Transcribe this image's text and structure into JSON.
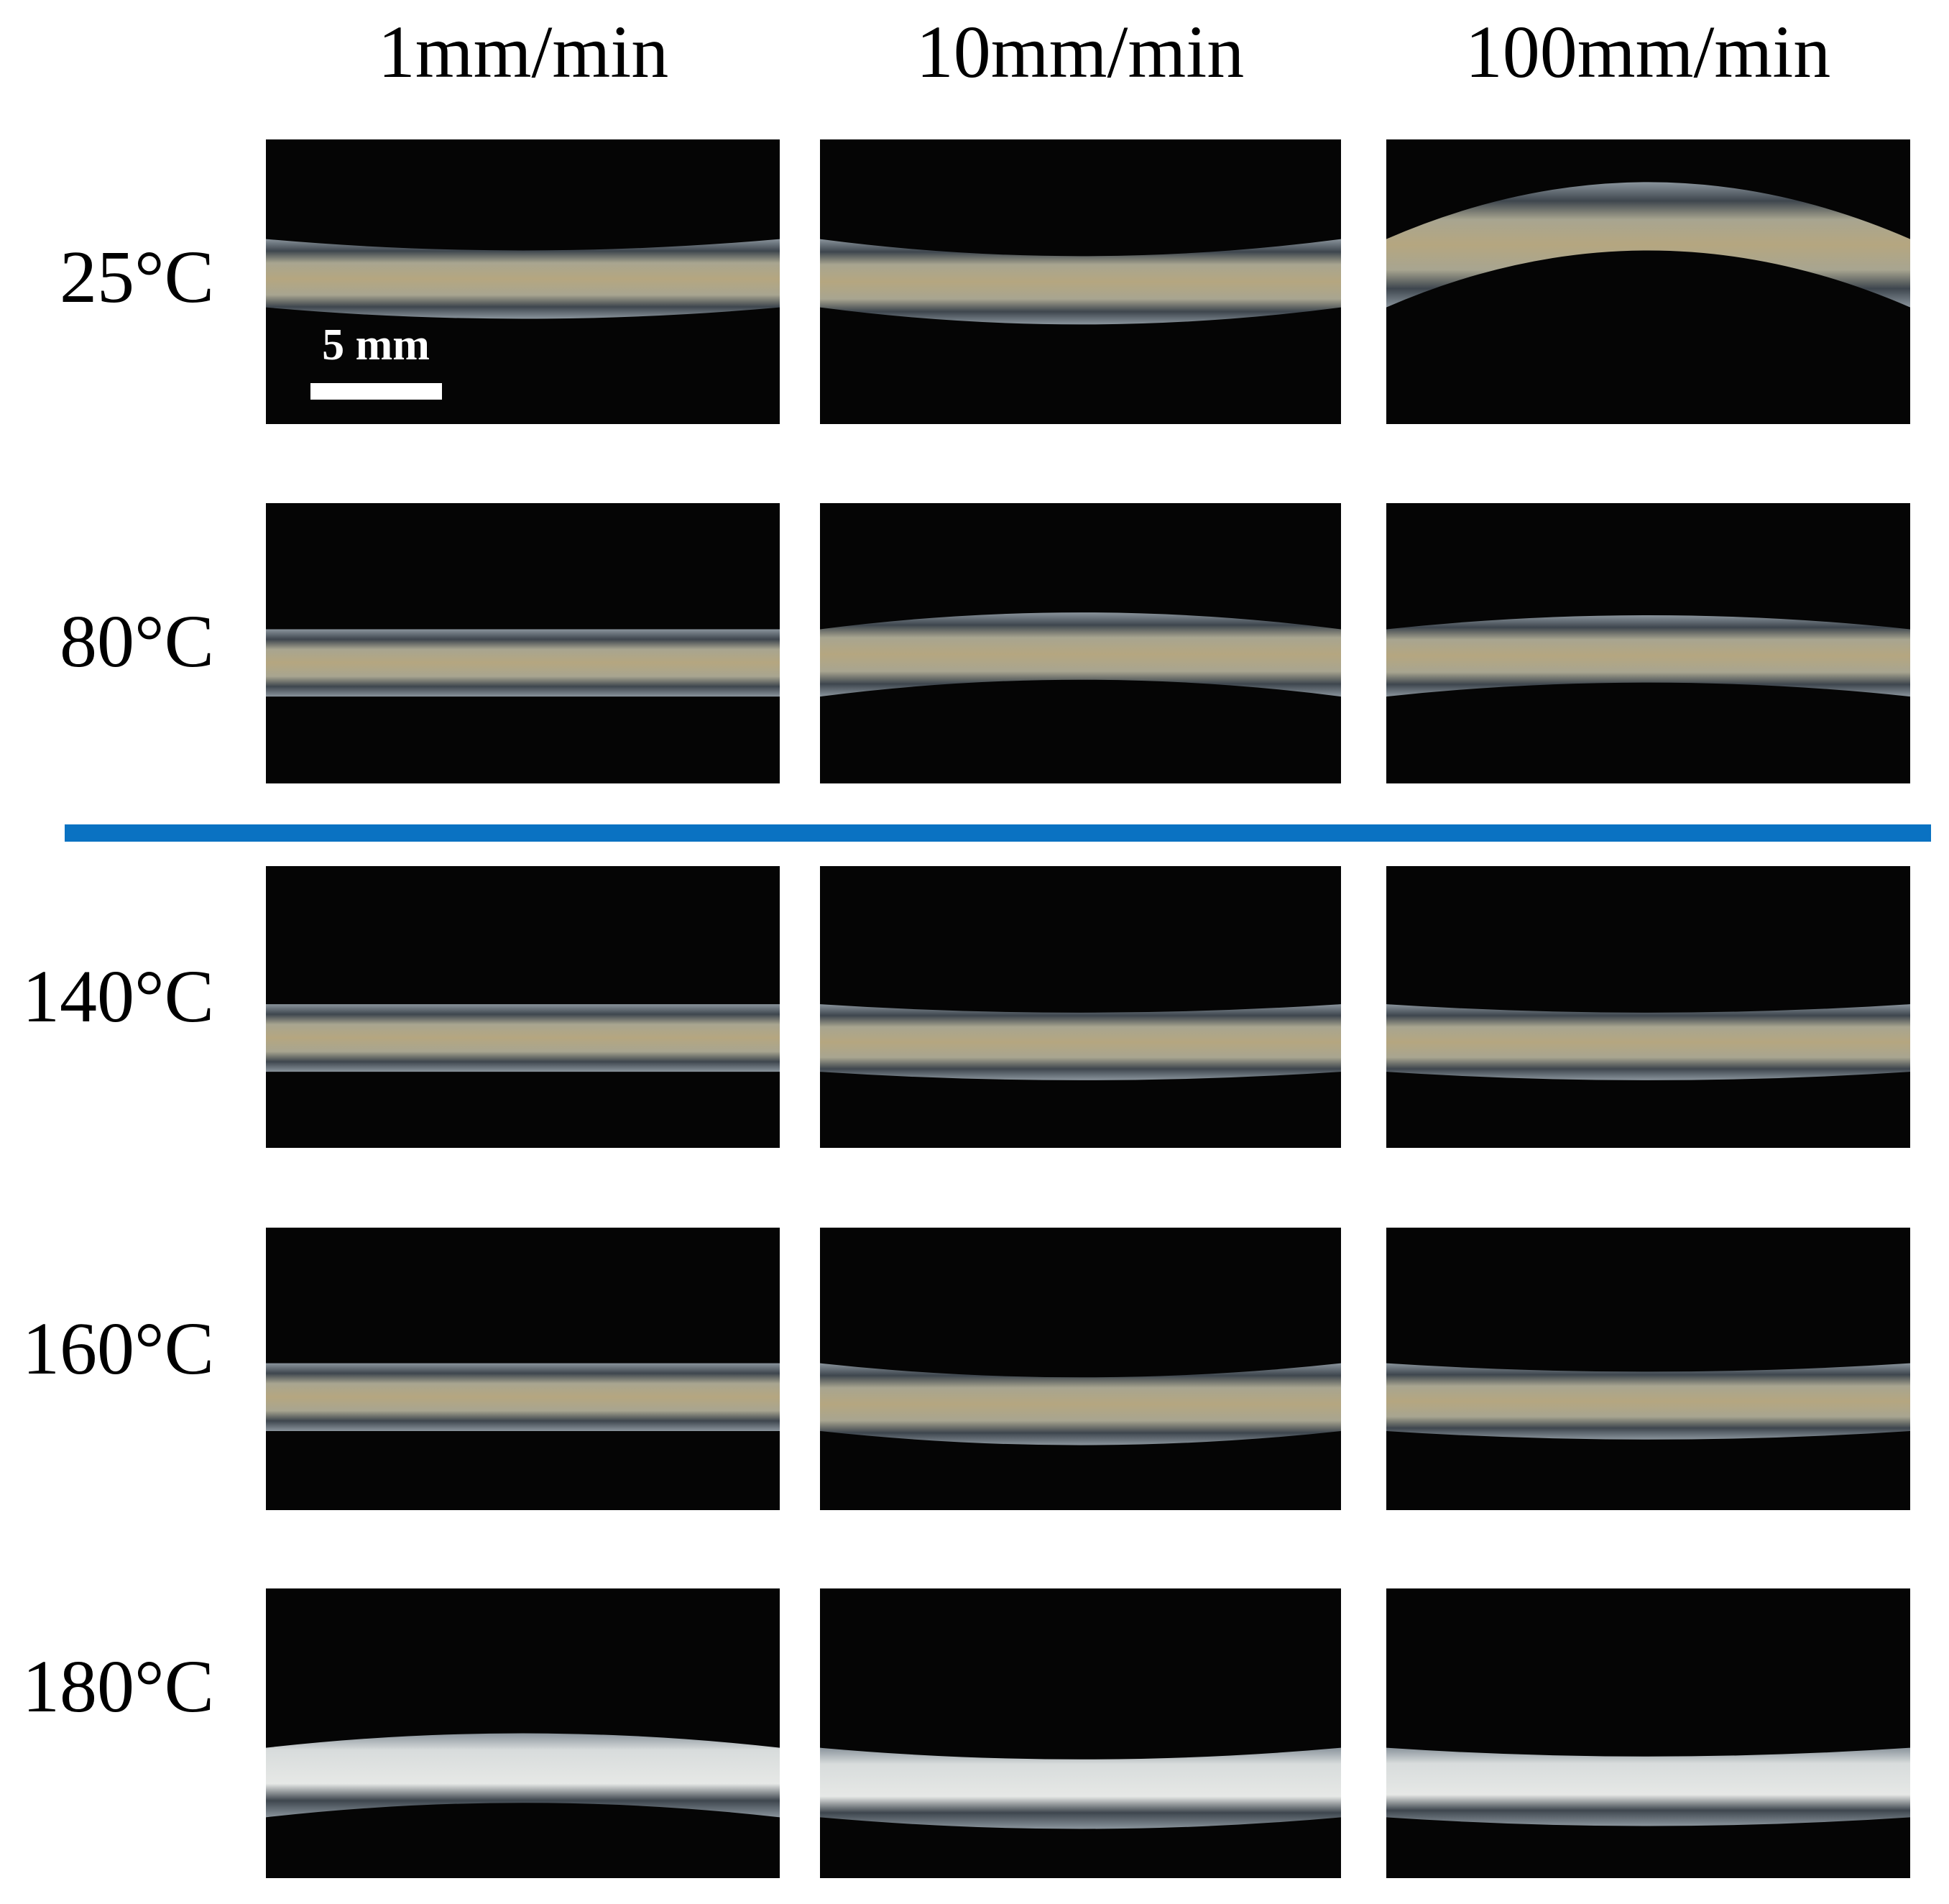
{
  "column_headers": [
    "1mm/min",
    "10mm/min",
    "100mm/min"
  ],
  "row_labels": [
    "25°C",
    "80°C",
    "140°C",
    "160°C",
    "180°C"
  ],
  "scale_bar": "5 mm"
}
